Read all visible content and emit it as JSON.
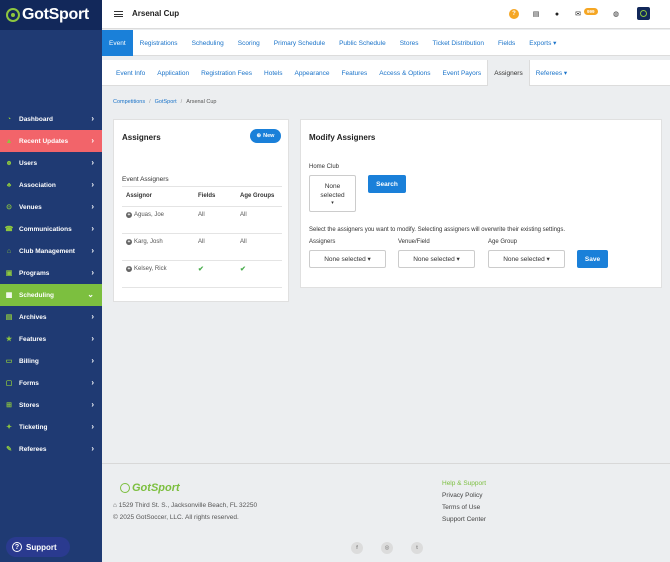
{
  "brand": {
    "name": "GotSport",
    "accent": "#8dc63f",
    "sidebar_bg": "#1f3a73"
  },
  "topbar": {
    "title": "Arsenal Cup",
    "notification_count": "999"
  },
  "sidebar": {
    "items": [
      {
        "label": "Dashboard",
        "icon": "speedometer-icon"
      },
      {
        "label": "Recent Updates",
        "icon": "chart-icon"
      },
      {
        "label": "Users",
        "icon": "users-icon"
      },
      {
        "label": "Association",
        "icon": "org-chart-icon"
      },
      {
        "label": "Venues",
        "icon": "map-pin-icon"
      },
      {
        "label": "Communications",
        "icon": "broadcast-icon"
      },
      {
        "label": "Club Management",
        "icon": "building-icon"
      },
      {
        "label": "Programs",
        "icon": "document-icon"
      },
      {
        "label": "Scheduling",
        "icon": "calendar-icon"
      },
      {
        "label": "Archives",
        "icon": "archive-icon"
      },
      {
        "label": "Features",
        "icon": "star-icon"
      },
      {
        "label": "Billing",
        "icon": "credit-card-icon"
      },
      {
        "label": "Forms",
        "icon": "form-icon"
      },
      {
        "label": "Stores",
        "icon": "cart-icon"
      },
      {
        "label": "Ticketing",
        "icon": "ticket-icon"
      },
      {
        "label": "Referees",
        "icon": "whistle-icon"
      }
    ],
    "support_label": "Support"
  },
  "tabs_primary": [
    "Event",
    "Registrations",
    "Scheduling",
    "Scoring",
    "Primary Schedule",
    "Public Schedule",
    "Stores",
    "Ticket Distribution",
    "Fields",
    "Exports ▾"
  ],
  "tabs_secondary": [
    "Event Info",
    "Application",
    "Registration Fees",
    "Hotels",
    "Appearance",
    "Features",
    "Access & Options",
    "Event Payors",
    "Assigners",
    "Referees ▾"
  ],
  "breadcrumb": [
    "Competitions",
    "GotSport",
    "Arsenal Cup"
  ],
  "assigners": {
    "title": "Assigners",
    "new_label": "New",
    "subheading": "Event Assigners",
    "columns": [
      "Assignor",
      "Fields",
      "Age Groups"
    ],
    "rows": [
      {
        "name": "Aguas, Joe",
        "fields": "All",
        "age_groups": "All"
      },
      {
        "name": "Karg, Josh",
        "fields": "All",
        "age_groups": "All"
      },
      {
        "name": "Kelsey, Rick",
        "fields": "✔",
        "age_groups": "✔"
      }
    ]
  },
  "modify": {
    "title": "Modify Assigners",
    "home_club_label": "Home Club",
    "home_club_value": "None selected",
    "search_label": "Search",
    "instruction": "Select the assigners you want to modify. Selecting assigners will overwrite their existing settings.",
    "assigners_label": "Assigners",
    "venue_label": "Venue/Field",
    "age_label": "Age Group",
    "assigners_value": "None selected ▾",
    "venue_value": "None selected ▾",
    "age_value": "None selected ▾",
    "save_label": "Save"
  },
  "footer": {
    "logo": "GotSport",
    "address": "1529 Third St. S., Jacksonville Beach, FL 32250",
    "copyright": "© 2025 GotSoccer, LLC. All rights reserved.",
    "links": [
      "Help & Support",
      "Privacy Policy",
      "Terms of Use",
      "Support Center"
    ],
    "social": [
      "f",
      "◎",
      "🐦"
    ]
  }
}
